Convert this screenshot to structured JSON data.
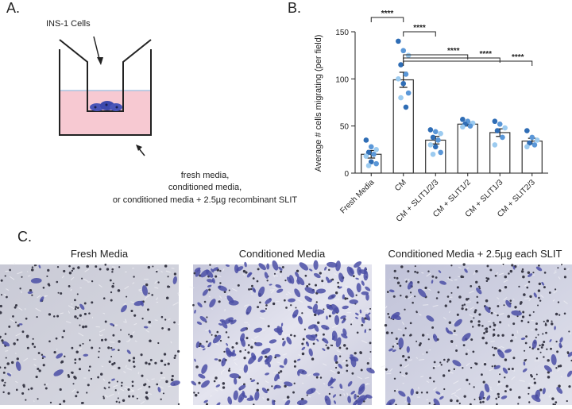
{
  "panel_labels": [
    "A.",
    "B.",
    "C."
  ],
  "diagram": {
    "insert_label": "INS-1 Cells",
    "caption": [
      "fresh media,",
      "conditioned media,",
      "or conditioned media + 2.5µg recombinant SLIT"
    ]
  },
  "chart_data": {
    "type": "bar",
    "y_label": "Average # cells migrating (per field)",
    "categories": [
      "Fresh Media",
      "CM",
      "CM + SLIT1/2/3",
      "CM + SLIT1/2",
      "CM + SLIT1/3",
      "CM + SLIT2/3"
    ],
    "values": [
      20,
      99,
      35,
      52,
      43,
      34
    ],
    "errors": [
      4,
      8,
      4,
      2,
      4,
      3
    ],
    "color": "#ffffff",
    "edge_color": "#333333",
    "points": [
      [
        35,
        28,
        25,
        22,
        20,
        18,
        12,
        10,
        8
      ],
      [
        140,
        130,
        125,
        115,
        105,
        100,
        95,
        85,
        80,
        70
      ],
      [
        46,
        44,
        42,
        38,
        35,
        30,
        28,
        22,
        20
      ],
      [
        57,
        55,
        53,
        52,
        50,
        49
      ],
      [
        55,
        52,
        48,
        45,
        38,
        30
      ],
      [
        45,
        38,
        35,
        32,
        30,
        28
      ]
    ],
    "point_colors": [
      "#2f6db5",
      "#5a97d8",
      "#9ccbf0"
    ],
    "ylim": [
      0,
      150
    ],
    "yticks": [
      0,
      50,
      100,
      150
    ],
    "significance": [
      "****",
      "****",
      "****",
      "****",
      "****"
    ]
  },
  "micrographs": {
    "titles": [
      "Fresh Media",
      "Conditioned Media",
      "Conditioned Media + 2.5µg each SLIT"
    ]
  }
}
